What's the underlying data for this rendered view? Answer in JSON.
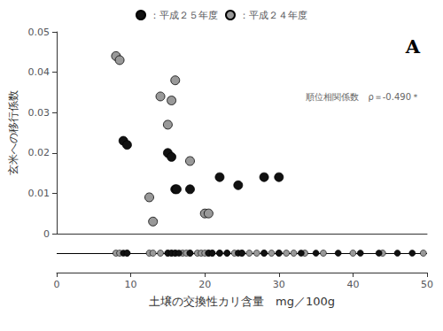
{
  "chart_data": [
    {
      "type": "scatter",
      "ylabel": "玄米への移行係数",
      "series": [
        {
          "name": "：平成２４年度",
          "color": "#999999",
          "x": [
            8.0,
            8.5,
            12.5,
            13.0,
            14.0,
            15.0,
            15.5,
            16.0,
            18.0,
            20.0,
            20.5
          ],
          "y": [
            0.044,
            0.043,
            0.009,
            0.003,
            0.034,
            0.027,
            0.033,
            0.038,
            0.018,
            0.005,
            0.005
          ]
        },
        {
          "name": "：平成２５年度",
          "color": "#111111",
          "x": [
            9.0,
            9.5,
            15.0,
            15.5,
            16.0,
            16.2,
            18.0,
            22.0,
            24.5,
            28.0,
            30.0
          ],
          "y": [
            0.023,
            0.022,
            0.02,
            0.019,
            0.011,
            0.011,
            0.011,
            0.014,
            0.012,
            0.014,
            0.014
          ]
        }
      ],
      "xlim": [
        0,
        50
      ],
      "ylim": [
        0,
        0.05
      ],
      "yticks": [
        0,
        0.01,
        0.02,
        0.03,
        0.04,
        0.05
      ],
      "annotations": [
        "A",
        "順位相関係数　ρ＝-0.490＊"
      ],
      "legend": "upper center",
      "grid": false,
      "tick_labels": "y"
    },
    {
      "type": "scatter",
      "xlabel": "土壌の交換性カリ含量　mg／100g",
      "series": [
        {
          "name": "：平成２４年度",
          "color": "#999999",
          "x": [
            8.0,
            8.5,
            9.5,
            12.5,
            13.0,
            14.0,
            15.0,
            15.5,
            16.0,
            17.0,
            17.5,
            18.0,
            19.0,
            19.5,
            20.0,
            20.5,
            21.0,
            22.0,
            23.0,
            24.0,
            25.0,
            26.0,
            27.0,
            28.0,
            29.0,
            30.0,
            31.0,
            32.0,
            33.5,
            36.0,
            40.0,
            44.0,
            49.5
          ],
          "y": [
            0.0,
            0.0,
            0.0,
            0.0,
            0.0,
            0.0,
            0.0,
            0.0,
            0.0,
            0.0,
            0.0,
            0.0,
            0.0,
            0.0,
            0.0,
            0.0,
            0.0,
            0.0,
            0.0,
            0.0,
            0.0,
            0.0,
            0.0,
            0.0,
            0.0,
            0.0,
            0.0,
            0.0,
            0.0,
            0.0,
            0.0,
            0.0,
            0.0
          ]
        },
        {
          "name": "：平成２５年度",
          "color": "#111111",
          "x": [
            9.0,
            9.5,
            15.0,
            15.5,
            16.0,
            16.5,
            18.0,
            20.5,
            21.0,
            22.0,
            23.0,
            24.5,
            25.0,
            28.0,
            30.0,
            33.0,
            35.0,
            38.0,
            41.0,
            43.5,
            46.0,
            48.0
          ],
          "y": [
            0.0,
            0.0,
            0.0,
            0.0,
            0.0,
            0.0,
            0.0,
            0.0,
            0.0,
            0.0,
            0.0,
            0.0,
            0.0,
            0.0,
            0.0,
            0.0,
            0.0,
            0.0,
            0.0,
            0.0,
            0.0,
            0.0
          ]
        }
      ],
      "xlim": [
        0,
        50
      ],
      "xticks": [
        0,
        10,
        20,
        30,
        40,
        50
      ],
      "ylim": [
        -0.5,
        0.5
      ],
      "grid": false,
      "tick_labels": "x"
    }
  ]
}
